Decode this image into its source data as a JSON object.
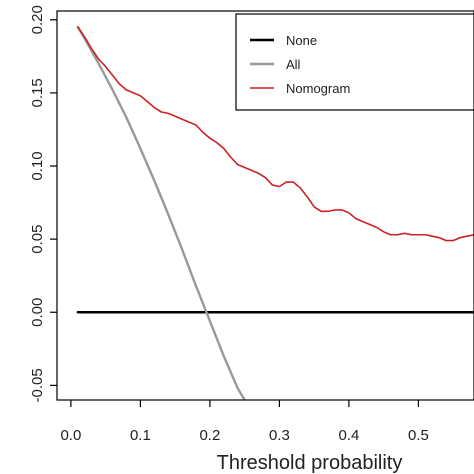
{
  "chart_data": {
    "type": "line",
    "title": "",
    "xlabel": "Threshold probability",
    "ylabel": "",
    "xlim": [
      -0.02,
      0.58
    ],
    "ylim": [
      -0.06,
      0.206
    ],
    "x_ticks": [
      {
        "value": 0.0,
        "label": "0.0"
      },
      {
        "value": 0.1,
        "label": "0.1"
      },
      {
        "value": 0.2,
        "label": "0.2"
      },
      {
        "value": 0.3,
        "label": "0.3"
      },
      {
        "value": 0.4,
        "label": "0.4"
      },
      {
        "value": 0.5,
        "label": "0.5"
      }
    ],
    "y_ticks": [
      {
        "value": 0.2,
        "label": "0.20"
      },
      {
        "value": 0.15,
        "label": "0.15"
      },
      {
        "value": 0.1,
        "label": "0.10"
      },
      {
        "value": 0.05,
        "label": "0.05"
      },
      {
        "value": 0.0,
        "label": "0.00"
      },
      {
        "value": -0.05,
        "label": "-0.05"
      }
    ],
    "grid": false,
    "legend_position": "top-right",
    "series": [
      {
        "name": "None",
        "color": "#000000",
        "x": [
          0.01,
          0.58
        ],
        "y": [
          0.0,
          0.0
        ]
      },
      {
        "name": "All",
        "color": "#999999",
        "x": [
          0.01,
          0.02,
          0.04,
          0.06,
          0.08,
          0.1,
          0.12,
          0.14,
          0.16,
          0.18,
          0.2,
          0.22,
          0.24,
          0.25
        ],
        "y": [
          0.195,
          0.187,
          0.17,
          0.152,
          0.133,
          0.112,
          0.09,
          0.067,
          0.043,
          0.018,
          -0.006,
          -0.03,
          -0.052,
          -0.06
        ]
      },
      {
        "name": "Nomogram",
        "color": "#cc2222",
        "x": [
          0.01,
          0.02,
          0.03,
          0.04,
          0.05,
          0.06,
          0.07,
          0.08,
          0.09,
          0.1,
          0.11,
          0.12,
          0.13,
          0.14,
          0.15,
          0.16,
          0.17,
          0.18,
          0.19,
          0.2,
          0.21,
          0.22,
          0.23,
          0.24,
          0.25,
          0.26,
          0.27,
          0.28,
          0.29,
          0.3,
          0.31,
          0.32,
          0.33,
          0.34,
          0.35,
          0.36,
          0.37,
          0.38,
          0.39,
          0.4,
          0.41,
          0.42,
          0.43,
          0.44,
          0.45,
          0.46,
          0.47,
          0.48,
          0.49,
          0.5,
          0.51,
          0.52,
          0.53,
          0.54,
          0.55,
          0.56,
          0.57,
          0.58
        ],
        "y": [
          0.195,
          0.188,
          0.18,
          0.173,
          0.168,
          0.162,
          0.156,
          0.152,
          0.15,
          0.148,
          0.144,
          0.14,
          0.137,
          0.136,
          0.134,
          0.132,
          0.13,
          0.128,
          0.123,
          0.119,
          0.116,
          0.112,
          0.106,
          0.101,
          0.099,
          0.097,
          0.095,
          0.092,
          0.087,
          0.086,
          0.089,
          0.089,
          0.085,
          0.079,
          0.072,
          0.069,
          0.069,
          0.07,
          0.07,
          0.068,
          0.064,
          0.062,
          0.06,
          0.058,
          0.055,
          0.053,
          0.053,
          0.054,
          0.053,
          0.053,
          0.053,
          0.052,
          0.051,
          0.049,
          0.049,
          0.051,
          0.052,
          0.053
        ]
      }
    ]
  }
}
